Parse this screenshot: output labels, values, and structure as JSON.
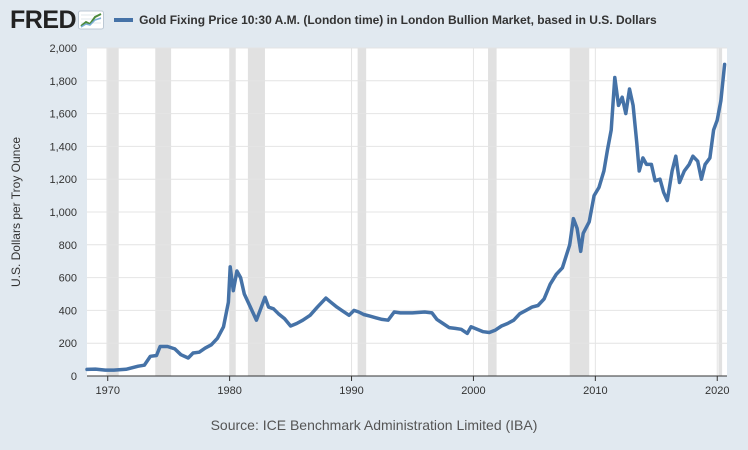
{
  "header": {
    "logo_text": "FRED",
    "logo_icon": "fred-chart-icon"
  },
  "source_text": "Source: ICE Benchmark Administration Limited (IBA)",
  "chart_data": {
    "type": "line",
    "title": "",
    "ylabel": "U.S. Dollars per Troy Ounce",
    "xlabel": "",
    "xlim": [
      1968.3,
      2020.8
    ],
    "ylim": [
      0,
      2000
    ],
    "x_ticks": [
      {
        "value": 1970,
        "label": "1970"
      },
      {
        "value": 1980,
        "label": "1980"
      },
      {
        "value": 1990,
        "label": "1990"
      },
      {
        "value": 2000,
        "label": "2000"
      },
      {
        "value": 2010,
        "label": "2010"
      },
      {
        "value": 2020,
        "label": "2020"
      }
    ],
    "y_ticks": [
      {
        "value": 0,
        "label": "0"
      },
      {
        "value": 200,
        "label": "200"
      },
      {
        "value": 400,
        "label": "400"
      },
      {
        "value": 600,
        "label": "600"
      },
      {
        "value": 800,
        "label": "800"
      },
      {
        "value": 1000,
        "label": "1,000"
      },
      {
        "value": 1200,
        "label": "1,200"
      },
      {
        "value": 1400,
        "label": "1,400"
      },
      {
        "value": 1600,
        "label": "1,600"
      },
      {
        "value": 1800,
        "label": "1,800"
      },
      {
        "value": 2000,
        "label": "2,000"
      }
    ],
    "grid": true,
    "legend_position": "top",
    "recessions": [
      [
        1969.9,
        1970.9
      ],
      [
        1973.9,
        1975.2
      ],
      [
        1980.0,
        1980.5
      ],
      [
        1981.5,
        1982.9
      ],
      [
        1990.5,
        1991.2
      ],
      [
        2001.2,
        2001.9
      ],
      [
        2007.9,
        2009.5
      ],
      [
        2020.1,
        2020.4
      ]
    ],
    "series": [
      {
        "name": "Gold Fixing Price 10:30 A.M. (London time) in London Bullion Market, based in U.S. Dollars",
        "color": "#4572a7",
        "points": [
          [
            1968.3,
            40
          ],
          [
            1969.0,
            42
          ],
          [
            1969.8,
            36
          ],
          [
            1970.5,
            36
          ],
          [
            1971.5,
            41
          ],
          [
            1972.5,
            60
          ],
          [
            1973.0,
            66
          ],
          [
            1973.5,
            120
          ],
          [
            1974.0,
            125
          ],
          [
            1974.3,
            180
          ],
          [
            1974.9,
            180
          ],
          [
            1975.5,
            165
          ],
          [
            1976.0,
            130
          ],
          [
            1976.6,
            110
          ],
          [
            1977.0,
            140
          ],
          [
            1977.5,
            145
          ],
          [
            1978.0,
            170
          ],
          [
            1978.5,
            190
          ],
          [
            1979.0,
            230
          ],
          [
            1979.5,
            300
          ],
          [
            1979.9,
            450
          ],
          [
            1980.05,
            665
          ],
          [
            1980.3,
            520
          ],
          [
            1980.6,
            640
          ],
          [
            1980.9,
            600
          ],
          [
            1981.2,
            500
          ],
          [
            1981.7,
            420
          ],
          [
            1982.2,
            340
          ],
          [
            1982.5,
            400
          ],
          [
            1982.9,
            480
          ],
          [
            1983.2,
            420
          ],
          [
            1983.6,
            410
          ],
          [
            1984.0,
            380
          ],
          [
            1984.5,
            350
          ],
          [
            1985.0,
            305
          ],
          [
            1985.5,
            320
          ],
          [
            1986.0,
            340
          ],
          [
            1986.6,
            370
          ],
          [
            1987.2,
            420
          ],
          [
            1987.9,
            475
          ],
          [
            1988.3,
            450
          ],
          [
            1988.8,
            420
          ],
          [
            1989.2,
            400
          ],
          [
            1989.8,
            370
          ],
          [
            1990.2,
            400
          ],
          [
            1990.6,
            390
          ],
          [
            1991.0,
            375
          ],
          [
            1991.5,
            365
          ],
          [
            1992.0,
            355
          ],
          [
            1992.5,
            345
          ],
          [
            1993.0,
            340
          ],
          [
            1993.5,
            390
          ],
          [
            1994.0,
            385
          ],
          [
            1994.5,
            385
          ],
          [
            1995.0,
            385
          ],
          [
            1996.0,
            390
          ],
          [
            1996.6,
            385
          ],
          [
            1997.0,
            345
          ],
          [
            1997.5,
            320
          ],
          [
            1998.0,
            295
          ],
          [
            1998.5,
            290
          ],
          [
            1999.0,
            285
          ],
          [
            1999.5,
            260
          ],
          [
            1999.8,
            300
          ],
          [
            2000.3,
            285
          ],
          [
            2000.8,
            270
          ],
          [
            2001.3,
            265
          ],
          [
            2001.8,
            280
          ],
          [
            2002.3,
            305
          ],
          [
            2002.8,
            320
          ],
          [
            2003.3,
            340
          ],
          [
            2003.8,
            380
          ],
          [
            2004.3,
            400
          ],
          [
            2004.8,
            420
          ],
          [
            2005.3,
            430
          ],
          [
            2005.8,
            470
          ],
          [
            2006.3,
            560
          ],
          [
            2006.8,
            620
          ],
          [
            2007.3,
            660
          ],
          [
            2007.9,
            800
          ],
          [
            2008.2,
            960
          ],
          [
            2008.5,
            900
          ],
          [
            2008.8,
            760
          ],
          [
            2009.0,
            870
          ],
          [
            2009.5,
            940
          ],
          [
            2009.9,
            1100
          ],
          [
            2010.3,
            1150
          ],
          [
            2010.7,
            1250
          ],
          [
            2011.0,
            1380
          ],
          [
            2011.3,
            1500
          ],
          [
            2011.6,
            1820
          ],
          [
            2011.9,
            1650
          ],
          [
            2012.2,
            1700
          ],
          [
            2012.5,
            1600
          ],
          [
            2012.8,
            1750
          ],
          [
            2013.1,
            1650
          ],
          [
            2013.4,
            1420
          ],
          [
            2013.6,
            1250
          ],
          [
            2013.9,
            1330
          ],
          [
            2014.2,
            1290
          ],
          [
            2014.6,
            1290
          ],
          [
            2014.9,
            1190
          ],
          [
            2015.3,
            1200
          ],
          [
            2015.6,
            1120
          ],
          [
            2015.9,
            1070
          ],
          [
            2016.3,
            1250
          ],
          [
            2016.6,
            1340
          ],
          [
            2016.9,
            1180
          ],
          [
            2017.3,
            1250
          ],
          [
            2017.7,
            1290
          ],
          [
            2018.0,
            1340
          ],
          [
            2018.4,
            1310
          ],
          [
            2018.7,
            1200
          ],
          [
            2019.0,
            1290
          ],
          [
            2019.4,
            1330
          ],
          [
            2019.7,
            1500
          ],
          [
            2020.0,
            1560
          ],
          [
            2020.3,
            1680
          ],
          [
            2020.6,
            1900
          ]
        ]
      }
    ]
  }
}
